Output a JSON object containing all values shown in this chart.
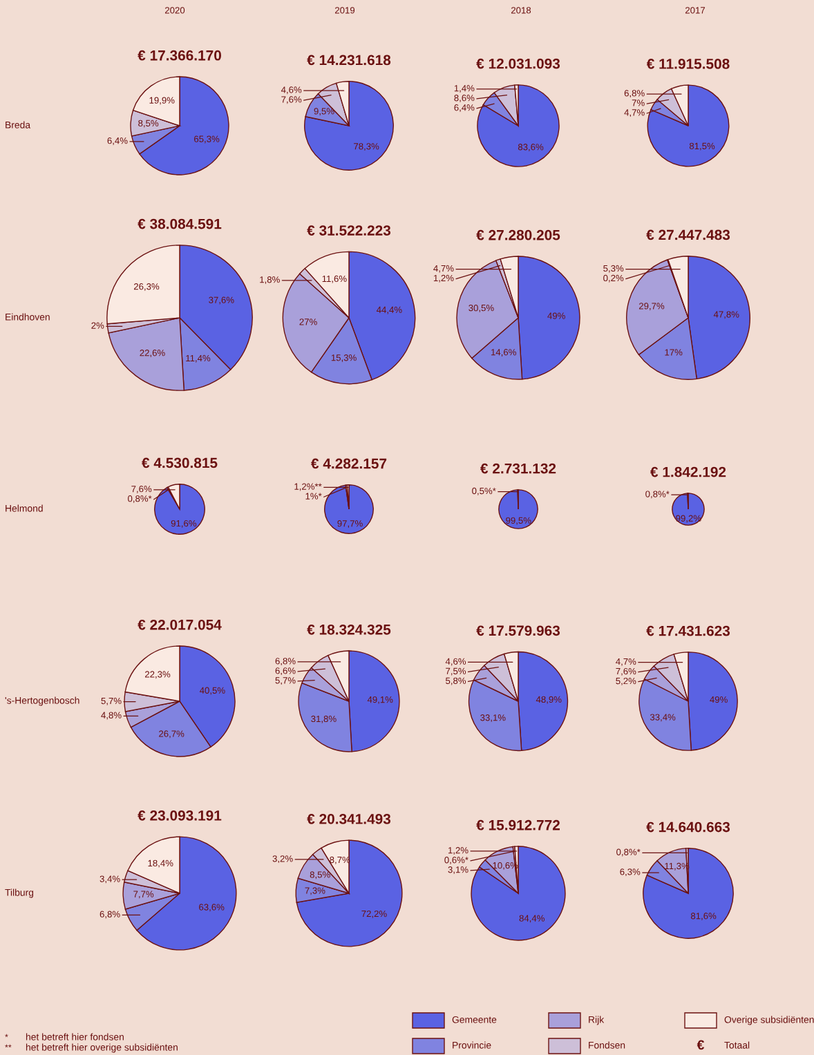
{
  "chart_data": [
    {
      "type": "pie",
      "title": "€ 17.366.170",
      "subtitle": "2020",
      "ylabel": "Breda",
      "legend": "bottom right",
      "annotations": [
        "€",
        "Totaal",
        "*",
        "het betreft hier fondsen",
        "**",
        "het betreft hier overige subsidiënten"
      ],
      "categories": [
        "Gemeente",
        "Provincie",
        "Rijk",
        "Fondsen",
        "Overige subsidiënten"
      ],
      "values": [
        65.3,
        6.4,
        null,
        8.5,
        19.9
      ],
      "value_labels": [
        "65,3%",
        "6,4%",
        null,
        "8,5%",
        "19,9%"
      ],
      "colors": [
        "#5a62e3",
        "#8083e0",
        "#a9a0da",
        "#cdbfd8",
        "#faeae2"
      ]
    },
    {
      "type": "pie",
      "title": "€ 14.231.618",
      "subtitle": "2019",
      "categories": [
        null,
        null,
        null,
        null,
        null
      ],
      "values": [
        78.3,
        9.5,
        null,
        7.6,
        4.6
      ],
      "value_labels": [
        "78,3%",
        "9,5%",
        null,
        "7,6%",
        "4,6%"
      ],
      "colors": [
        "#5a62e3",
        "#8083e0",
        "#a9a0da",
        "#cdbfd8",
        "#faeae2"
      ]
    },
    {
      "type": "pie",
      "title": "€ 12.031.093",
      "subtitle": "2018",
      "categories": [
        null,
        null,
        null,
        null,
        null
      ],
      "values": [
        83.6,
        6.4,
        null,
        8.6,
        1.4
      ],
      "value_labels": [
        "83,6%",
        "6,4%",
        null,
        "8,6%",
        "1,4%"
      ],
      "colors": [
        "#5a62e3",
        "#8083e0",
        "#a9a0da",
        "#cdbfd8",
        "#faeae2"
      ]
    },
    {
      "type": "pie",
      "title": "€ 11.915.508",
      "subtitle": "2017",
      "categories": [
        null,
        null,
        null,
        null,
        null
      ],
      "values": [
        81.5,
        4.7,
        null,
        7,
        6.8
      ],
      "value_labels": [
        "81,5%",
        "4,7%",
        null,
        "7%",
        "6,8%"
      ],
      "colors": [
        "#5a62e3",
        "#8083e0",
        "#a9a0da",
        "#cdbfd8",
        "#faeae2"
      ]
    },
    {
      "type": "pie",
      "title": "€ 38.084.591",
      "ylabel": "Eindhoven",
      "categories": [
        null,
        null,
        null,
        null,
        null
      ],
      "values": [
        37.6,
        11.4,
        22.6,
        2,
        26.3
      ],
      "value_labels": [
        "37,6%",
        "11,4%",
        "22,6%",
        "2%",
        "26,3%"
      ],
      "colors": [
        "#5a62e3",
        "#8083e0",
        "#a9a0da",
        "#cdbfd8",
        "#faeae2"
      ]
    },
    {
      "type": "pie",
      "title": "€ 31.522.223",
      "categories": [
        null,
        null,
        null,
        null,
        null
      ],
      "values": [
        44.4,
        15.3,
        27,
        1.8,
        11.6
      ],
      "value_labels": [
        "44,4%",
        "15,3%",
        "27%",
        "1,8%",
        "11,6%"
      ],
      "colors": [
        "#5a62e3",
        "#8083e0",
        "#a9a0da",
        "#cdbfd8",
        "#faeae2"
      ]
    },
    {
      "type": "pie",
      "title": "€ 27.280.205",
      "categories": [
        null,
        null,
        null,
        null,
        null
      ],
      "values": [
        49,
        14.6,
        30.5,
        1.2,
        4.7
      ],
      "value_labels": [
        "49%",
        "14,6%",
        "30,5%",
        "1,2%",
        "4,7%"
      ],
      "colors": [
        "#5a62e3",
        "#8083e0",
        "#a9a0da",
        "#cdbfd8",
        "#faeae2"
      ]
    },
    {
      "type": "pie",
      "title": "€ 27.447.483",
      "categories": [
        null,
        null,
        null,
        null,
        null
      ],
      "values": [
        47.8,
        17,
        29.7,
        0.2,
        5.3
      ],
      "value_labels": [
        "47,8%",
        "17%",
        "29,7%",
        "0,2%",
        "5,3%"
      ],
      "colors": [
        "#5a62e3",
        "#8083e0",
        "#a9a0da",
        "#cdbfd8",
        "#faeae2"
      ]
    },
    {
      "type": "pie",
      "title": "€ 4.530.815",
      "ylabel": "Helmond",
      "categories": [
        null,
        null,
        null,
        null,
        null
      ],
      "values": [
        91.6,
        null,
        null,
        0.8,
        7.6
      ],
      "value_labels": [
        "91,6%",
        null,
        null,
        "0,8%*",
        "7,6%"
      ],
      "colors": [
        "#5a62e3",
        "#8083e0",
        "#a9a0da",
        "#cdbfd8",
        "#faeae2"
      ]
    },
    {
      "type": "pie",
      "title": "€ 4.282.157",
      "categories": [
        null,
        null,
        null,
        null,
        null
      ],
      "values": [
        97.7,
        null,
        null,
        1,
        1.2
      ],
      "value_labels": [
        "97,7%",
        null,
        null,
        "1%*",
        "1,2%**"
      ],
      "colors": [
        "#5a62e3",
        "#8083e0",
        "#a9a0da",
        "#cdbfd8",
        "#faeae2"
      ]
    },
    {
      "type": "pie",
      "title": "€ 2.731.132",
      "categories": [
        null,
        null,
        null,
        null,
        null
      ],
      "values": [
        99.5,
        null,
        null,
        0.5,
        null
      ],
      "value_labels": [
        "99,5%",
        null,
        null,
        "0,5%*",
        null
      ],
      "colors": [
        "#5a62e3",
        "#8083e0",
        "#a9a0da",
        "#cdbfd8",
        "#faeae2"
      ]
    },
    {
      "type": "pie",
      "title": "€ 1.842.192",
      "categories": [
        null,
        null,
        null,
        null,
        null
      ],
      "values": [
        99.2,
        null,
        null,
        0.8,
        null
      ],
      "value_labels": [
        "99,2%",
        null,
        null,
        "0,8%*",
        null
      ],
      "colors": [
        "#5a62e3",
        "#8083e0",
        "#a9a0da",
        "#cdbfd8",
        "#faeae2"
      ]
    },
    {
      "type": "pie",
      "title": "€ 22.017.054",
      "ylabel": "'s-Hertogenbosch",
      "categories": [
        null,
        null,
        null,
        null,
        null
      ],
      "values": [
        40.5,
        26.7,
        4.8,
        5.7,
        22.3
      ],
      "value_labels": [
        "40,5%",
        "26,7%",
        "4,8%",
        "5,7%",
        "22,3%"
      ],
      "colors": [
        "#5a62e3",
        "#8083e0",
        "#a9a0da",
        "#cdbfd8",
        "#faeae2"
      ]
    },
    {
      "type": "pie",
      "title": "€ 18.324.325",
      "categories": [
        null,
        null,
        null,
        null,
        null
      ],
      "values": [
        49.1,
        31.8,
        5.7,
        6.6,
        6.8
      ],
      "value_labels": [
        "49,1%",
        "31,8%",
        "5,7%",
        "6,6%",
        "6,8%"
      ],
      "colors": [
        "#5a62e3",
        "#8083e0",
        "#a9a0da",
        "#cdbfd8",
        "#faeae2"
      ]
    },
    {
      "type": "pie",
      "title": "€ 17.579.963",
      "categories": [
        null,
        null,
        null,
        null,
        null
      ],
      "values": [
        48.9,
        33.1,
        5.8,
        7.5,
        4.6
      ],
      "value_labels": [
        "48,9%",
        "33,1%",
        "5,8%",
        "7,5%",
        "4,6%"
      ],
      "colors": [
        "#5a62e3",
        "#8083e0",
        "#a9a0da",
        "#cdbfd8",
        "#faeae2"
      ]
    },
    {
      "type": "pie",
      "title": "€ 17.431.623",
      "categories": [
        null,
        null,
        null,
        null,
        null
      ],
      "values": [
        49,
        33.4,
        5.2,
        7.6,
        4.7
      ],
      "value_labels": [
        "49%",
        "33,4%",
        "5,2%",
        "7,6%",
        "4,7%"
      ],
      "colors": [
        "#5a62e3",
        "#8083e0",
        "#a9a0da",
        "#cdbfd8",
        "#faeae2"
      ]
    },
    {
      "type": "pie",
      "title": "€ 23.093.191",
      "ylabel": "Tilburg",
      "categories": [
        null,
        null,
        null,
        null,
        null
      ],
      "values": [
        63.6,
        6.8,
        7.7,
        3.4,
        18.4
      ],
      "value_labels": [
        "63,6%",
        "6,8%",
        "7,7%",
        "3,4%",
        "18,4%"
      ],
      "colors": [
        "#5a62e3",
        "#8083e0",
        "#a9a0da",
        "#cdbfd8",
        "#faeae2"
      ]
    },
    {
      "type": "pie",
      "title": "€ 20.341.493",
      "categories": [
        null,
        null,
        null,
        null,
        null
      ],
      "values": [
        72.2,
        7.3,
        8.5,
        3.2,
        8.7
      ],
      "value_labels": [
        "72,2%",
        "7,3%",
        "8,5%",
        "3,2%",
        "8,7%"
      ],
      "colors": [
        "#5a62e3",
        "#8083e0",
        "#a9a0da",
        "#cdbfd8",
        "#faeae2"
      ]
    },
    {
      "type": "pie",
      "title": "€ 15.912.772",
      "categories": [
        null,
        null,
        null,
        null,
        null
      ],
      "values": [
        84.4,
        3.1,
        10.6,
        0.6,
        1.2
      ],
      "value_labels": [
        "84,4%",
        "3,1%",
        "10,6%",
        "0,6%*",
        "1,2%"
      ],
      "colors": [
        "#5a62e3",
        "#8083e0",
        "#a9a0da",
        "#cdbfd8",
        "#faeae2"
      ]
    },
    {
      "type": "pie",
      "title": "€ 14.640.663",
      "categories": [
        null,
        null,
        null,
        null,
        null
      ],
      "values": [
        81.6,
        6.3,
        11.3,
        0.8,
        null
      ],
      "value_labels": [
        "81,6%",
        "6,3%",
        "11,3%",
        "0,8%*",
        null
      ],
      "colors": [
        "#5a62e3",
        "#8083e0",
        "#a9a0da",
        "#cdbfd8",
        "#faeae2"
      ]
    }
  ]
}
